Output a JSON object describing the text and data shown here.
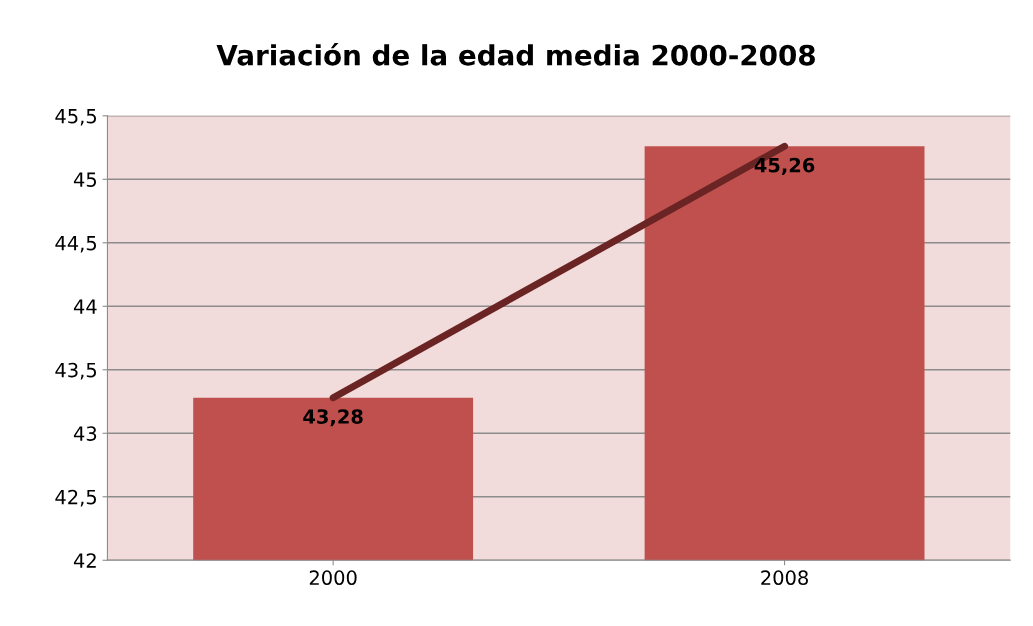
{
  "chart_data": {
    "type": "bar",
    "title": "Variación de la edad media 2000-2008",
    "categories": [
      "2000",
      "2008"
    ],
    "series": [
      {
        "color": "#c0504d",
        "values": [
          43.28,
          45.26
        ],
        "value_labels": [
          "43,28",
          "45,26"
        ]
      },
      {
        "type": "line",
        "color": "#6b2424",
        "values": [
          43.28,
          45.26
        ]
      }
    ],
    "ylim": [
      42,
      45.5
    ],
    "yticks": [
      42,
      {
        "value": 42.5,
        "label": "42,5"
      },
      43,
      {
        "value": 43.5,
        "label": "43,5"
      },
      44,
      {
        "value": 44.5,
        "label": "44,5"
      },
      45,
      {
        "value": 45.5,
        "label": "45,5"
      }
    ],
    "grid": "y",
    "legend": false,
    "marker": "none"
  }
}
